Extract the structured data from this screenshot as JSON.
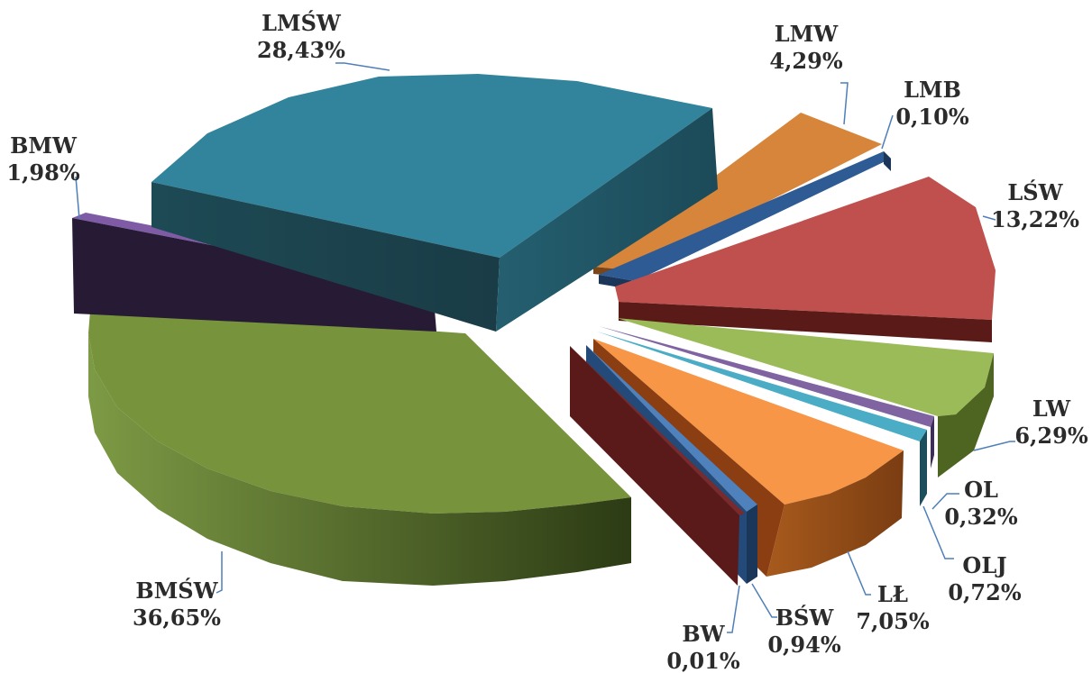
{
  "chart_data": {
    "type": "pie",
    "title": "",
    "slices": [
      {
        "label": "LMW",
        "value": "4,29%",
        "pct": 4.29,
        "color": "#d6853a"
      },
      {
        "label": "LMB",
        "value": "0,10%",
        "pct": 0.1,
        "color": "#2f5b94"
      },
      {
        "label": "LŚW",
        "value": "13,22%",
        "pct": 13.22,
        "color": "#c0504d"
      },
      {
        "label": "LW",
        "value": "6,29%",
        "pct": 6.29,
        "color": "#9bbb59"
      },
      {
        "label": "OL",
        "value": "0,32%",
        "pct": 0.32,
        "color": "#8064a2"
      },
      {
        "label": "OLJ",
        "value": "0,72%",
        "pct": 0.72,
        "color": "#4bacc6"
      },
      {
        "label": "LŁ",
        "value": "7,05%",
        "pct": 7.05,
        "color": "#f79646"
      },
      {
        "label": "BŚW",
        "value": "0,94%",
        "pct": 0.94,
        "color": "#4f81bd"
      },
      {
        "label": "BW",
        "value": "0,01%",
        "pct": 0.01,
        "color": "#7a2a2a"
      },
      {
        "label": "BMŚW",
        "value": "36,65%",
        "pct": 36.65,
        "color": "#77933c"
      },
      {
        "label": "BMW",
        "value": "1,98%",
        "pct": 1.98,
        "color": "#7f5ba6"
      },
      {
        "label": "LMŚW",
        "value": "28,43%",
        "pct": 28.43,
        "color": "#31849b"
      }
    ],
    "legend": "none",
    "style": "3d-exploded"
  }
}
